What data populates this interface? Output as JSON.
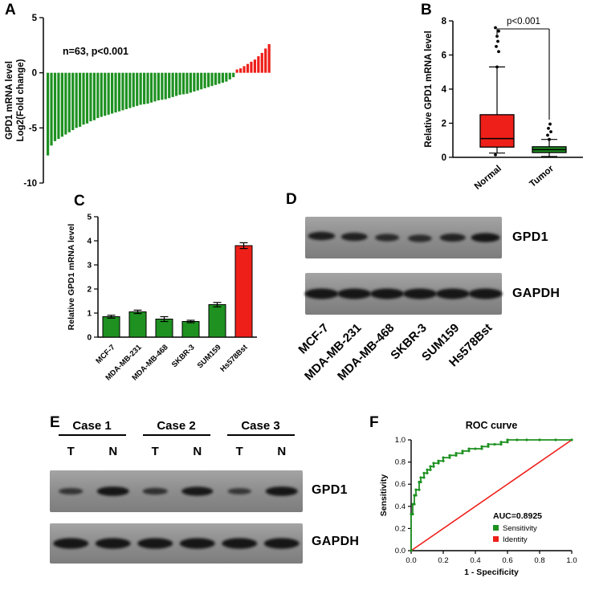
{
  "colors": {
    "green": "#1e9121",
    "red": "#ee1f19",
    "black": "#000000",
    "band": "#121212"
  },
  "panels": {
    "A": {
      "label": "A"
    },
    "B": {
      "label": "B"
    },
    "C": {
      "label": "C"
    },
    "D": {
      "label": "D",
      "band_labels": [
        "GPD1",
        "GAPDH"
      ],
      "lanes": [
        "MCF-7",
        "MDA-MB-231",
        "MDA-MB-468",
        "SKBR-3",
        "SUM159",
        "Hs578Bst"
      ],
      "gpd1_band_intensity": [
        0.85,
        0.8,
        0.62,
        0.6,
        0.75,
        1.0
      ],
      "gapdh_band_intensity": [
        1,
        1,
        1,
        1,
        1,
        1
      ]
    },
    "E": {
      "label": "E",
      "cases": [
        "Case 1",
        "Case 2",
        "Case 3"
      ],
      "lane_labels": [
        "T",
        "N",
        "T",
        "N",
        "T",
        "N"
      ],
      "band_labels": [
        "GPD1",
        "GAPDH"
      ],
      "gpd1_band_intensity": [
        0.45,
        1.0,
        0.5,
        0.95,
        0.4,
        1.0
      ],
      "gapdh_band_intensity": [
        1,
        1,
        1,
        1,
        1,
        1
      ]
    },
    "F": {
      "label": "F"
    }
  },
  "chart_data": [
    {
      "id": "A",
      "type": "bar",
      "annotation": "n=63, p<0.001",
      "ylabel": [
        "GPD1 mRNA level",
        "Log2(Fold change)"
      ],
      "ylim": [
        -10,
        5
      ],
      "yticks": [
        5,
        0,
        -5,
        -10
      ],
      "negative_color": "green",
      "positive_color": "red",
      "values": [
        -7.5,
        -6.6,
        -6.2,
        -6.0,
        -5.8,
        -5.6,
        -5.4,
        -5.2,
        -5.0,
        -4.9,
        -4.7,
        -4.6,
        -4.4,
        -4.3,
        -4.1,
        -4.0,
        -3.9,
        -3.8,
        -3.7,
        -3.6,
        -3.5,
        -3.4,
        -3.3,
        -3.2,
        -3.1,
        -3.0,
        -2.9,
        -2.85,
        -2.8,
        -2.7,
        -2.6,
        -2.5,
        -2.45,
        -2.4,
        -2.3,
        -2.2,
        -2.1,
        -2.0,
        -1.95,
        -1.9,
        -1.8,
        -1.7,
        -1.6,
        -1.5,
        -1.4,
        -1.3,
        -1.2,
        -1.1,
        -1.0,
        -0.9,
        -0.8,
        -0.6,
        -0.4,
        0.3,
        0.4,
        0.6,
        0.8,
        1.0,
        1.2,
        1.5,
        1.8,
        2.2,
        2.6
      ]
    },
    {
      "id": "B",
      "type": "box",
      "pvalue": "p<0.001",
      "ylabel": "Relative GPD1 mRNA level",
      "ylim": [
        0,
        8
      ],
      "yticks": [
        0,
        2,
        4,
        6,
        8
      ],
      "groups": [
        {
          "name": "Normal",
          "color": "red",
          "whisker_low": 0.25,
          "q1": 0.6,
          "median": 1.1,
          "q3": 2.5,
          "whisker_high": 5.3,
          "outliers": [
            0.15,
            6.2,
            6.5,
            6.8,
            7.1,
            7.4,
            7.6
          ]
        },
        {
          "name": "Tumor",
          "color": "green",
          "whisker_low": 0.05,
          "q1": 0.28,
          "median": 0.45,
          "q3": 0.62,
          "whisker_high": 1.05,
          "outliers": [
            1.3,
            1.5,
            1.7,
            1.95
          ]
        }
      ]
    },
    {
      "id": "C",
      "type": "bar",
      "ylabel": "Relative GPD1 mRNA level",
      "ylim": [
        0,
        5
      ],
      "yticks": [
        0,
        1,
        2,
        3,
        4,
        5
      ],
      "categories": [
        "MCF-7",
        "MDA-MB-231",
        "MDA-MB-468",
        "SKBR-3",
        "SUM159",
        "Hs578Bst"
      ],
      "values": [
        0.85,
        1.05,
        0.75,
        0.65,
        1.35,
        3.8
      ],
      "errors": [
        0.06,
        0.07,
        0.1,
        0.05,
        0.09,
        0.12
      ],
      "bar_colors": [
        "green",
        "green",
        "green",
        "green",
        "green",
        "red"
      ]
    },
    {
      "id": "F",
      "type": "line",
      "title": "ROC curve",
      "xlabel": "1 - Specificity",
      "ylabel": "Sensitivity",
      "xlim": [
        0,
        1
      ],
      "ylim": [
        0,
        1
      ],
      "xticks": [
        0,
        0.2,
        0.4,
        0.6,
        0.8,
        1
      ],
      "yticks": [
        0,
        0.2,
        0.4,
        0.6,
        0.8,
        1
      ],
      "annotation": "AUC=0.8925",
      "legend": [
        {
          "label": "Sensitivity",
          "color": "green"
        },
        {
          "label": "Identity",
          "color": "red"
        }
      ],
      "series": [
        {
          "name": "Sensitivity",
          "color": "green",
          "points": [
            [
              0,
              0
            ],
            [
              0,
              0.33
            ],
            [
              0.01,
              0.33
            ],
            [
              0.01,
              0.42
            ],
            [
              0.02,
              0.42
            ],
            [
              0.02,
              0.5
            ],
            [
              0.03,
              0.5
            ],
            [
              0.03,
              0.55
            ],
            [
              0.05,
              0.55
            ],
            [
              0.05,
              0.62
            ],
            [
              0.06,
              0.62
            ],
            [
              0.06,
              0.66
            ],
            [
              0.08,
              0.66
            ],
            [
              0.08,
              0.7
            ],
            [
              0.1,
              0.7
            ],
            [
              0.1,
              0.73
            ],
            [
              0.12,
              0.73
            ],
            [
              0.12,
              0.76
            ],
            [
              0.14,
              0.76
            ],
            [
              0.14,
              0.79
            ],
            [
              0.17,
              0.79
            ],
            [
              0.17,
              0.81
            ],
            [
              0.2,
              0.81
            ],
            [
              0.2,
              0.84
            ],
            [
              0.24,
              0.84
            ],
            [
              0.24,
              0.86
            ],
            [
              0.28,
              0.86
            ],
            [
              0.28,
              0.88
            ],
            [
              0.32,
              0.88
            ],
            [
              0.32,
              0.9
            ],
            [
              0.36,
              0.9
            ],
            [
              0.36,
              0.92
            ],
            [
              0.4,
              0.92
            ],
            [
              0.44,
              0.92
            ],
            [
              0.44,
              0.94
            ],
            [
              0.48,
              0.94
            ],
            [
              0.48,
              0.96
            ],
            [
              0.52,
              0.96
            ],
            [
              0.56,
              0.96
            ],
            [
              0.56,
              0.98
            ],
            [
              0.6,
              0.98
            ],
            [
              0.6,
              1.0
            ],
            [
              0.66,
              1.0
            ],
            [
              0.72,
              1.0
            ],
            [
              0.8,
              1.0
            ],
            [
              0.9,
              1.0
            ],
            [
              1,
              1
            ]
          ]
        },
        {
          "name": "Identity",
          "color": "red",
          "points": [
            [
              0,
              0
            ],
            [
              1,
              1
            ]
          ]
        }
      ]
    }
  ]
}
